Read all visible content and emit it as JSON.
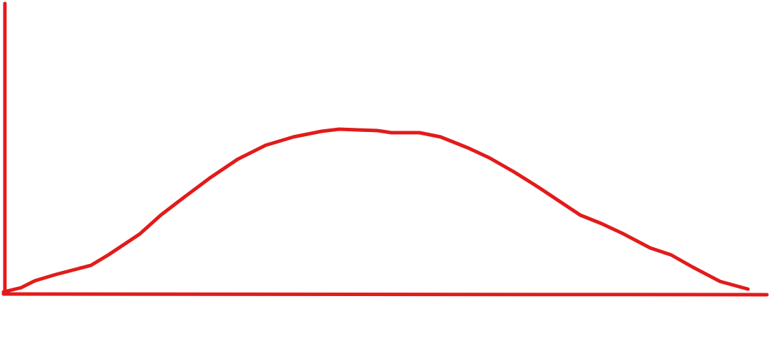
{
  "drawing": {
    "stroke_color": "#e21b1b",
    "background_color": "#ffffff",
    "shape": "bell-curve"
  }
}
